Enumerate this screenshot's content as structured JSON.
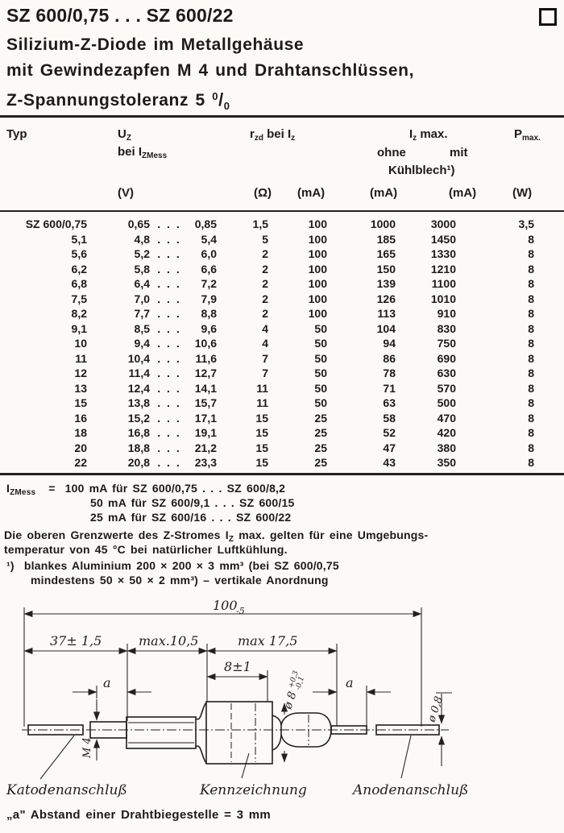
{
  "header": {
    "title": "SZ 600/0,75 . . . SZ 600/22",
    "subtitle1": "Silizium-Z-Diode im Metallgehäuse",
    "subtitle2": "mit Gewindezapfen M 4 und Drahtanschlüssen,",
    "subtitle3_base": "Z-Spannungstoleranz 5 ",
    "frac_top": "0",
    "frac_slash": "/",
    "frac_bottom": "0"
  },
  "table": {
    "header": {
      "typ": "Typ",
      "uz_base": "U",
      "uz_sub": "Z",
      "bei_base": "bei I",
      "bei_sub": "ZMess",
      "rzd_base": "r",
      "rzd_sub": "zd",
      "rzd_mid": " bei I",
      "rzd_sub2": "z",
      "izmax_base": "I",
      "izmax_sub": "z",
      "izmax_post": " max.",
      "ohne": "ohne",
      "mit": "mit",
      "kuehlblech": "Kühlblech¹)",
      "pmax_base": "P",
      "pmax_sub": "max.",
      "u_v": "(V)",
      "u_ohm": "(Ω)",
      "u_ma": "(mA)",
      "u_w": "(W)"
    },
    "dots": ". . .",
    "rows": [
      {
        "typ": "SZ 600/0,75",
        "uz_min": "0,65",
        "uz_max": "0,85",
        "rzd": "1,5",
        "iz": "100",
        "ohne": "1000",
        "mit": "3000",
        "pmax": "3,5"
      },
      {
        "typ": "5,1",
        "uz_min": "4,8",
        "uz_max": "5,4",
        "rzd": "5",
        "iz": "100",
        "ohne": "185",
        "mit": "1450",
        "pmax": "8"
      },
      {
        "typ": "5,6",
        "uz_min": "5,2",
        "uz_max": "6,0",
        "rzd": "2",
        "iz": "100",
        "ohne": "165",
        "mit": "1330",
        "pmax": "8"
      },
      {
        "typ": "6,2",
        "uz_min": "5,8",
        "uz_max": "6,6",
        "rzd": "2",
        "iz": "100",
        "ohne": "150",
        "mit": "1210",
        "pmax": "8"
      },
      {
        "typ": "6,8",
        "uz_min": "6,4",
        "uz_max": "7,2",
        "rzd": "2",
        "iz": "100",
        "ohne": "139",
        "mit": "1100",
        "pmax": "8"
      },
      {
        "typ": "7,5",
        "uz_min": "7,0",
        "uz_max": "7,9",
        "rzd": "2",
        "iz": "100",
        "ohne": "126",
        "mit": "1010",
        "pmax": "8"
      },
      {
        "typ": "8,2",
        "uz_min": "7,7",
        "uz_max": "8,8",
        "rzd": "2",
        "iz": "100",
        "ohne": "113",
        "mit": "910",
        "pmax": "8"
      },
      {
        "typ": "9,1",
        "uz_min": "8,5",
        "uz_max": "9,6",
        "rzd": "4",
        "iz": "50",
        "ohne": "104",
        "mit": "830",
        "pmax": "8"
      },
      {
        "typ": "10",
        "uz_min": "9,4",
        "uz_max": "10,6",
        "rzd": "4",
        "iz": "50",
        "ohne": "94",
        "mit": "750",
        "pmax": "8"
      },
      {
        "typ": "11",
        "uz_min": "10,4",
        "uz_max": "11,6",
        "rzd": "7",
        "iz": "50",
        "ohne": "86",
        "mit": "690",
        "pmax": "8"
      },
      {
        "typ": "12",
        "uz_min": "11,4",
        "uz_max": "12,7",
        "rzd": "7",
        "iz": "50",
        "ohne": "78",
        "mit": "630",
        "pmax": "8"
      },
      {
        "typ": "13",
        "uz_min": "12,4",
        "uz_max": "14,1",
        "rzd": "11",
        "iz": "50",
        "ohne": "71",
        "mit": "570",
        "pmax": "8"
      },
      {
        "typ": "15",
        "uz_min": "13,8",
        "uz_max": "15,7",
        "rzd": "11",
        "iz": "50",
        "ohne": "63",
        "mit": "500",
        "pmax": "8"
      },
      {
        "typ": "16",
        "uz_min": "15,2",
        "uz_max": "17,1",
        "rzd": "15",
        "iz": "25",
        "ohne": "58",
        "mit": "470",
        "pmax": "8"
      },
      {
        "typ": "18",
        "uz_min": "16,8",
        "uz_max": "19,1",
        "rzd": "15",
        "iz": "25",
        "ohne": "52",
        "mit": "420",
        "pmax": "8"
      },
      {
        "typ": "20",
        "uz_min": "18,8",
        "uz_max": "21,2",
        "rzd": "15",
        "iz": "25",
        "ohne": "47",
        "mit": "380",
        "pmax": "8"
      },
      {
        "typ": "22",
        "uz_min": "20,8",
        "uz_max": "23,3",
        "rzd": "15",
        "iz": "25",
        "ohne": "43",
        "mit": "350",
        "pmax": "8"
      }
    ]
  },
  "footnotes": {
    "izmess_base": "I",
    "izmess_sub": "ZMess",
    "eq": "=",
    "iz_lines": [
      "100 mA für SZ 600/0,75 . . . SZ 600/8,2",
      "50 mA für SZ 600/9,1  . . . SZ 600/15",
      "25 mA für SZ 600/16   . . . SZ 600/22"
    ],
    "ambient_1a": "Die oberen Grenzwerte des Z-Stromes I",
    "ambient_sub": "Z",
    "ambient_1b": " max. gelten für eine Umgebungs-",
    "ambient_2": "temperatur von 45 °C bei natürlicher Luftkühlung.",
    "fn1_marker": "¹)",
    "fn1_a": "blankes Aluminium 200 × 200 × 3 mm³  (bei SZ 600/0,75",
    "fn1_b": "mindestens 50 × 50 × 2 mm³)  –  vertikale Anordnung"
  },
  "diagram": {
    "dim_overall": "100",
    "dim_overall_tol": "-5",
    "dim_left": "37± 1,5",
    "dim_mid": "max.10,5",
    "dim_right": "max 17,5",
    "dim_glass": "8±1",
    "dim_a_left": "a",
    "dim_a_right": "a",
    "dia_body": "ø 8",
    "dia_body_plus": "+0,3",
    "dia_body_minus": "-0,1",
    "dia_wire": "ø 0,8",
    "thread": "M 4",
    "label_cathode": "Katodenanschluß",
    "label_marking": "Kennzeichnung",
    "label_anode": "Anodenanschluß"
  },
  "note_a": "„a\" Abstand einer Drahtbiegestelle = 3 mm"
}
